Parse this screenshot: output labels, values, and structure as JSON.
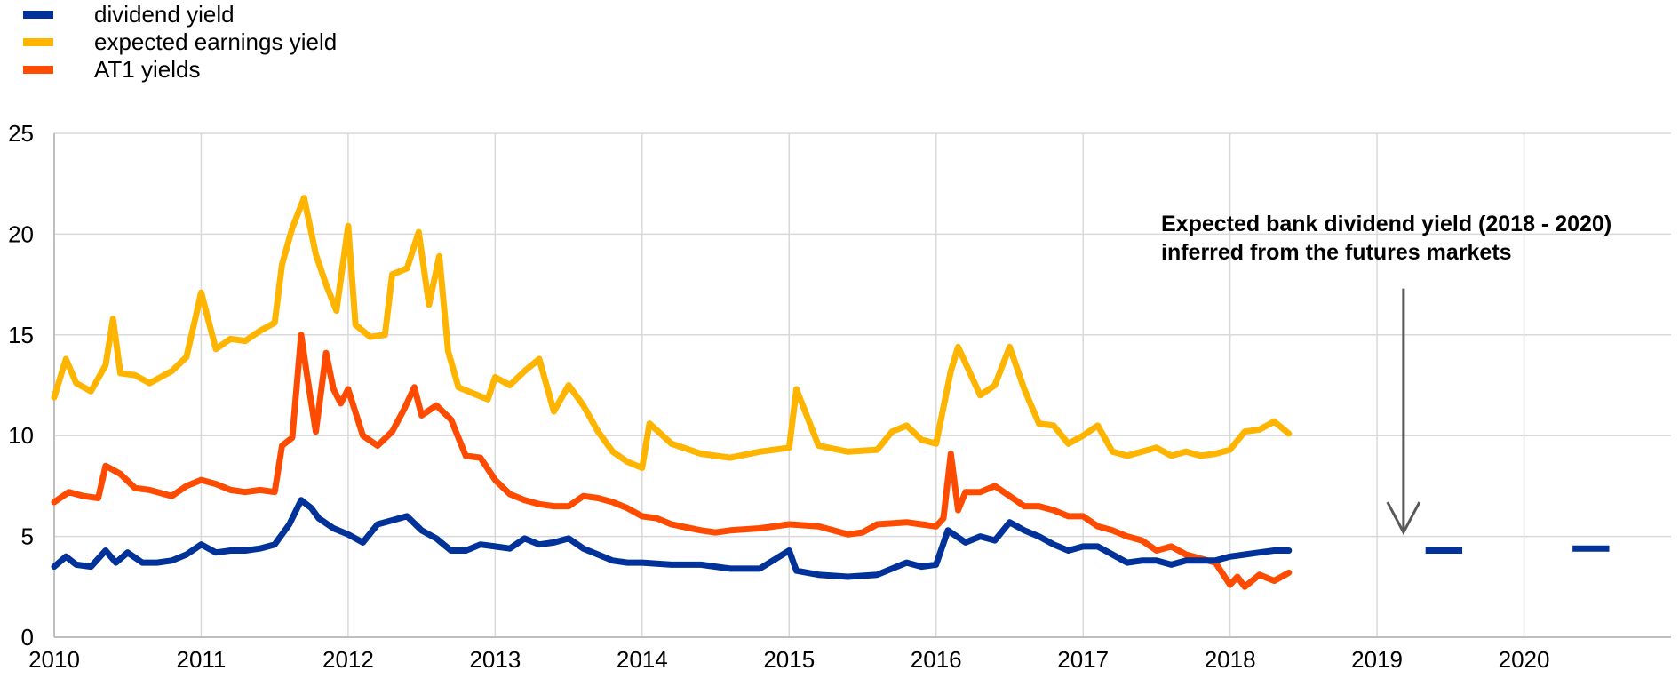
{
  "chart_data": {
    "type": "line",
    "xlim": [
      2010,
      2021
    ],
    "ylim": [
      0,
      25
    ],
    "x_ticks": [
      "2010",
      "2011",
      "2012",
      "2013",
      "2014",
      "2015",
      "2016",
      "2017",
      "2018",
      "2019",
      "2020"
    ],
    "y_ticks": [
      "0",
      "5",
      "10",
      "15",
      "20",
      "25"
    ],
    "grid": true,
    "legend_position": "top-left",
    "annotation": [
      "Expected bank dividend yield (2018 - 2020)",
      "inferred from the futures markets"
    ],
    "series": [
      {
        "name": "dividend yield",
        "color": "#003299",
        "x": [
          2010.0,
          2010.08,
          2010.15,
          2010.25,
          2010.35,
          2010.42,
          2010.5,
          2010.6,
          2010.7,
          2010.8,
          2010.9,
          2011.0,
          2011.1,
          2011.2,
          2011.3,
          2011.4,
          2011.5,
          2011.6,
          2011.68,
          2011.75,
          2011.8,
          2011.9,
          2012.0,
          2012.1,
          2012.2,
          2012.3,
          2012.4,
          2012.5,
          2012.6,
          2012.7,
          2012.8,
          2012.9,
          2013.0,
          2013.1,
          2013.2,
          2013.3,
          2013.4,
          2013.5,
          2013.6,
          2013.7,
          2013.8,
          2013.9,
          2014.0,
          2014.2,
          2014.4,
          2014.6,
          2014.8,
          2015.0,
          2015.05,
          2015.2,
          2015.4,
          2015.6,
          2015.8,
          2015.9,
          2016.0,
          2016.08,
          2016.2,
          2016.3,
          2016.4,
          2016.5,
          2016.6,
          2016.7,
          2016.8,
          2016.9,
          2017.0,
          2017.1,
          2017.2,
          2017.3,
          2017.4,
          2017.5,
          2017.6,
          2017.7,
          2017.8,
          2017.9,
          2018.0,
          2018.1,
          2018.2,
          2018.3,
          2018.4
        ],
        "y": [
          3.5,
          4.0,
          3.6,
          3.5,
          4.3,
          3.7,
          4.2,
          3.7,
          3.7,
          3.8,
          4.1,
          4.6,
          4.2,
          4.3,
          4.3,
          4.4,
          4.6,
          5.6,
          6.8,
          6.4,
          5.9,
          5.4,
          5.1,
          4.7,
          5.6,
          5.8,
          6.0,
          5.3,
          4.9,
          4.3,
          4.3,
          4.6,
          4.5,
          4.4,
          4.9,
          4.6,
          4.7,
          4.9,
          4.4,
          4.1,
          3.8,
          3.7,
          3.7,
          3.6,
          3.6,
          3.4,
          3.4,
          4.3,
          3.3,
          3.1,
          3.0,
          3.1,
          3.7,
          3.5,
          3.6,
          5.3,
          4.7,
          5.0,
          4.8,
          5.7,
          5.3,
          5.0,
          4.6,
          4.3,
          4.5,
          4.5,
          4.1,
          3.7,
          3.8,
          3.8,
          3.6,
          3.8,
          3.8,
          3.8,
          4.0,
          4.1,
          4.2,
          4.3,
          4.3
        ]
      },
      {
        "name": "expected earnings yield",
        "color": "#FFB400",
        "x": [
          2010.0,
          2010.08,
          2010.15,
          2010.25,
          2010.35,
          2010.4,
          2010.45,
          2010.55,
          2010.65,
          2010.8,
          2010.9,
          2011.0,
          2011.1,
          2011.2,
          2011.3,
          2011.4,
          2011.5,
          2011.55,
          2011.62,
          2011.7,
          2011.78,
          2011.85,
          2011.92,
          2012.0,
          2012.05,
          2012.15,
          2012.25,
          2012.3,
          2012.4,
          2012.48,
          2012.55,
          2012.62,
          2012.68,
          2012.75,
          2012.85,
          2012.95,
          2013.0,
          2013.1,
          2013.2,
          2013.3,
          2013.4,
          2013.5,
          2013.6,
          2013.7,
          2013.8,
          2013.9,
          2014.0,
          2014.05,
          2014.2,
          2014.4,
          2014.6,
          2014.8,
          2015.0,
          2015.05,
          2015.2,
          2015.4,
          2015.6,
          2015.7,
          2015.8,
          2015.9,
          2016.0,
          2016.1,
          2016.15,
          2016.3,
          2016.4,
          2016.5,
          2016.6,
          2016.7,
          2016.8,
          2016.9,
          2017.0,
          2017.1,
          2017.2,
          2017.3,
          2017.4,
          2017.5,
          2017.6,
          2017.7,
          2017.8,
          2017.9,
          2018.0,
          2018.1,
          2018.2,
          2018.3,
          2018.4
        ],
        "y": [
          11.9,
          13.8,
          12.6,
          12.2,
          13.5,
          15.8,
          13.1,
          13.0,
          12.6,
          13.2,
          13.9,
          17.1,
          14.3,
          14.8,
          14.7,
          15.2,
          15.6,
          18.5,
          20.3,
          21.8,
          19.0,
          17.5,
          16.2,
          20.4,
          15.5,
          14.9,
          15.0,
          18.0,
          18.3,
          20.1,
          16.5,
          18.9,
          14.2,
          12.4,
          12.1,
          11.8,
          12.9,
          12.5,
          13.2,
          13.8,
          11.2,
          12.5,
          11.5,
          10.2,
          9.2,
          8.7,
          8.4,
          10.6,
          9.6,
          9.1,
          8.9,
          9.2,
          9.4,
          12.3,
          9.5,
          9.2,
          9.3,
          10.2,
          10.5,
          9.8,
          9.6,
          13.2,
          14.4,
          12.0,
          12.5,
          14.4,
          12.3,
          10.6,
          10.5,
          9.6,
          10.0,
          10.5,
          9.2,
          9.0,
          9.2,
          9.4,
          9.0,
          9.2,
          9.0,
          9.1,
          9.3,
          10.2,
          10.3,
          10.7,
          10.1
        ]
      },
      {
        "name": "AT1 yields",
        "color": "#FF4B00",
        "x": [
          2010.0,
          2010.1,
          2010.2,
          2010.3,
          2010.35,
          2010.45,
          2010.55,
          2010.65,
          2010.8,
          2010.9,
          2011.0,
          2011.1,
          2011.2,
          2011.3,
          2011.4,
          2011.5,
          2011.55,
          2011.62,
          2011.68,
          2011.72,
          2011.78,
          2011.85,
          2011.9,
          2011.95,
          2012.0,
          2012.1,
          2012.2,
          2012.3,
          2012.38,
          2012.45,
          2012.5,
          2012.6,
          2012.7,
          2012.8,
          2012.9,
          2013.0,
          2013.1,
          2013.2,
          2013.3,
          2013.4,
          2013.5,
          2013.6,
          2013.7,
          2013.8,
          2013.9,
          2014.0,
          2014.1,
          2014.2,
          2014.4,
          2014.5,
          2014.6,
          2014.8,
          2015.0,
          2015.2,
          2015.4,
          2015.5,
          2015.6,
          2015.8,
          2015.9,
          2016.0,
          2016.05,
          2016.1,
          2016.15,
          2016.2,
          2016.3,
          2016.4,
          2016.5,
          2016.6,
          2016.7,
          2016.8,
          2016.9,
          2017.0,
          2017.1,
          2017.2,
          2017.3,
          2017.4,
          2017.5,
          2017.6,
          2017.7,
          2017.8,
          2017.9,
          2018.0,
          2018.05,
          2018.1,
          2018.2,
          2018.3,
          2018.4
        ],
        "y": [
          6.7,
          7.2,
          7.0,
          6.9,
          8.5,
          8.1,
          7.4,
          7.3,
          7.0,
          7.5,
          7.8,
          7.6,
          7.3,
          7.2,
          7.3,
          7.2,
          9.5,
          9.9,
          15.0,
          13.0,
          10.2,
          14.1,
          12.3,
          11.6,
          12.3,
          10.0,
          9.5,
          10.2,
          11.3,
          12.4,
          11.0,
          11.5,
          10.8,
          9.0,
          8.9,
          7.8,
          7.1,
          6.8,
          6.6,
          6.5,
          6.5,
          7.0,
          6.9,
          6.7,
          6.4,
          6.0,
          5.9,
          5.6,
          5.3,
          5.2,
          5.3,
          5.4,
          5.6,
          5.5,
          5.1,
          5.2,
          5.6,
          5.7,
          5.6,
          5.5,
          5.9,
          9.1,
          6.3,
          7.2,
          7.2,
          7.5,
          7.0,
          6.5,
          6.5,
          6.3,
          6.0,
          6.0,
          5.5,
          5.3,
          5.0,
          4.8,
          4.3,
          4.5,
          4.1,
          3.9,
          3.7,
          2.6,
          3.0,
          2.5,
          3.1,
          2.8,
          3.2
        ]
      }
    ],
    "future_segments": [
      {
        "name": "dividend yield",
        "x": [
          2019.33,
          2019.58
        ],
        "y": 4.3
      },
      {
        "name": "dividend yield",
        "x": [
          2020.33,
          2020.58
        ],
        "y": 4.4
      }
    ],
    "arrow": {
      "from": [
        2019.18,
        17.3
      ],
      "to": [
        2019.18,
        5.2
      ]
    }
  }
}
